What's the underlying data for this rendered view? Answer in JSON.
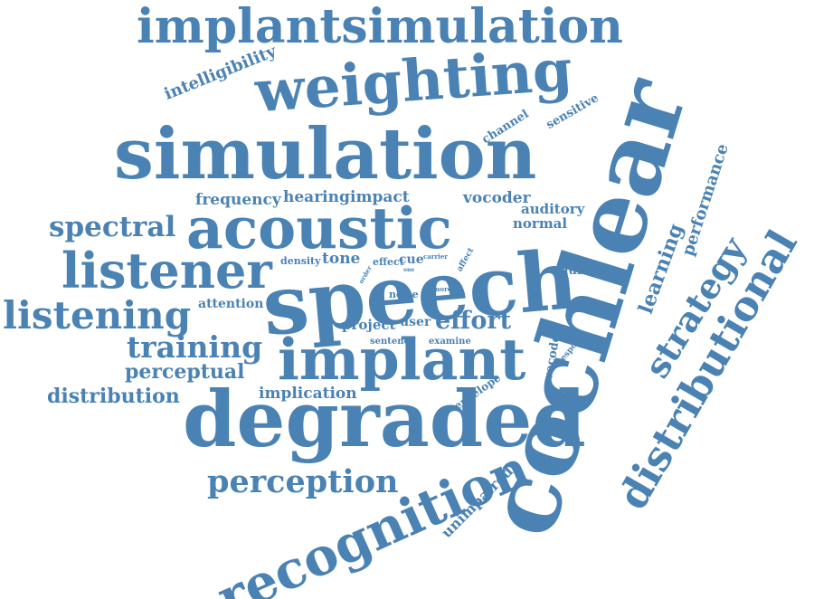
{
  "cloud": {
    "color": "#4a82b4",
    "background": "#ffffff",
    "words": [
      "implantsimulation",
      "weighting",
      "intelligibility",
      "simulation",
      "cochlear",
      "channel",
      "sensitive",
      "frequency",
      "hearing",
      "impact",
      "vocoder",
      "auditory",
      "normal",
      "acoustic",
      "spectral",
      "performance",
      "learning",
      "distributional",
      "strategy",
      "listener",
      "density",
      "tone",
      "effect",
      "cue",
      "carrier",
      "one",
      "affect",
      "order",
      "speech",
      "number",
      "more",
      "noise",
      "attention",
      "listening",
      "project",
      "user",
      "effort",
      "training",
      "sentence",
      "examine",
      "vocoded",
      "response",
      "perceptual",
      "implant",
      "distribution",
      "implication",
      "envelope",
      "degraded",
      "perception",
      "unimpaired",
      "recognition"
    ]
  }
}
